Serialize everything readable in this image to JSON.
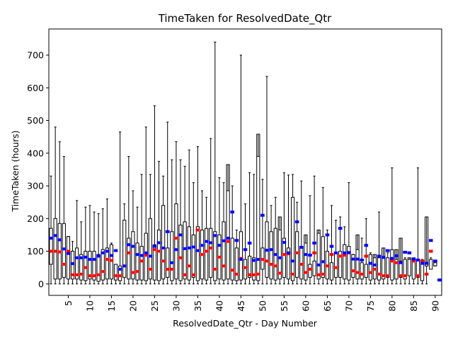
{
  "chart_data": {
    "type": "boxplot",
    "title": "TimeTaken for ResolvedDate_Qtr",
    "xlabel": "ResolvedDate_Qtr - Day Number",
    "ylabel": "TimeTaken (hours)",
    "xlim": [
      0.5,
      91.5
    ],
    "ylim": [
      -35,
      780
    ],
    "x_ticks": [
      5,
      10,
      15,
      20,
      25,
      30,
      35,
      40,
      45,
      50,
      55,
      60,
      65,
      70,
      75,
      80,
      85,
      90
    ],
    "x_tick_labels": [
      "5",
      "10",
      "15",
      "20",
      "25",
      "30",
      "35",
      "40",
      "45",
      "50",
      "55",
      "60",
      "65",
      "70",
      "75",
      "80",
      "85",
      "90"
    ],
    "y_ticks": [
      0,
      100,
      200,
      300,
      400,
      500,
      600,
      700
    ],
    "y_tick_labels": [
      "0",
      "100",
      "200",
      "300",
      "400",
      "500",
      "600",
      "700"
    ],
    "grid": false,
    "median_color": "#ff0000",
    "mean_color": "#0000ff",
    "box_color": "#000000",
    "days": [
      1,
      2,
      3,
      4,
      5,
      6,
      7,
      8,
      9,
      10,
      11,
      12,
      13,
      14,
      15,
      16,
      17,
      18,
      19,
      20,
      21,
      22,
      23,
      24,
      25,
      26,
      27,
      28,
      29,
      30,
      31,
      32,
      33,
      34,
      35,
      36,
      37,
      38,
      39,
      40,
      41,
      42,
      43,
      44,
      45,
      46,
      47,
      48,
      49,
      50,
      51,
      52,
      53,
      54,
      55,
      56,
      57,
      58,
      59,
      60,
      61,
      62,
      63,
      64,
      65,
      66,
      67,
      68,
      69,
      70,
      71,
      72,
      73,
      74,
      75,
      76,
      77,
      78,
      79,
      80,
      81,
      82,
      83,
      84,
      85,
      86,
      87,
      88,
      89,
      90,
      91
    ],
    "whisker_low": [
      0,
      0,
      0,
      0,
      0,
      0,
      0,
      0,
      0,
      0,
      0,
      0,
      0,
      0,
      0,
      0,
      0,
      0,
      0,
      0,
      0,
      0,
      0,
      0,
      0,
      0,
      0,
      0,
      0,
      0,
      0,
      0,
      0,
      0,
      0,
      0,
      0,
      0,
      0,
      0,
      0,
      0,
      0,
      0,
      0,
      0,
      0,
      0,
      0,
      0,
      0,
      0,
      0,
      0,
      0,
      0,
      0,
      0,
      0,
      0,
      0,
      0,
      0,
      0,
      0,
      0,
      0,
      0,
      0,
      0,
      0,
      0,
      0,
      0,
      0,
      0,
      0,
      0,
      0,
      0,
      0,
      0,
      0,
      0,
      0,
      0,
      0,
      0,
      45,
      55,
      12
    ],
    "q1": [
      60,
      15,
      15,
      20,
      15,
      15,
      15,
      12,
      10,
      15,
      12,
      8,
      12,
      15,
      15,
      12,
      10,
      20,
      15,
      15,
      12,
      12,
      10,
      15,
      12,
      10,
      15,
      20,
      10,
      15,
      10,
      15,
      12,
      20,
      10,
      15,
      12,
      20,
      10,
      15,
      12,
      15,
      12,
      10,
      12,
      15,
      20,
      12,
      10,
      45,
      20,
      15,
      12,
      15,
      20,
      15,
      10,
      20,
      15,
      12,
      20,
      25,
      15,
      20,
      15,
      12,
      20,
      20,
      15,
      12,
      20,
      15,
      15,
      20,
      12,
      15,
      12,
      15,
      20,
      12,
      15,
      20,
      15,
      25,
      15,
      20,
      10,
      55,
      45,
      55,
      12
    ],
    "median": [
      100,
      100,
      98,
      60,
      100,
      28,
      28,
      30,
      50,
      25,
      25,
      28,
      38,
      75,
      72,
      25,
      25,
      55,
      95,
      35,
      38,
      70,
      88,
      45,
      105,
      100,
      70,
      45,
      45,
      140,
      80,
      28,
      55,
      28,
      165,
      90,
      100,
      110,
      45,
      82,
      55,
      130,
      42,
      30,
      78,
      50,
      28,
      28,
      30,
      75,
      70,
      60,
      55,
      33,
      90,
      92,
      30,
      95,
      60,
      35,
      45,
      95,
      28,
      30,
      55,
      90,
      50,
      85,
      88,
      95,
      40,
      35,
      30,
      85,
      35,
      45,
      30,
      25,
      25,
      70,
      65,
      25,
      25,
      95,
      70,
      25,
      70,
      30,
      100,
      70,
      12
    ],
    "mean": [
      140,
      148,
      135,
      107,
      93,
      62,
      80,
      80,
      82,
      75,
      75,
      85,
      95,
      100,
      87,
      102,
      45,
      55,
      120,
      115,
      90,
      87,
      95,
      85,
      115,
      126,
      110,
      160,
      65,
      105,
      150,
      108,
      110,
      113,
      102,
      118,
      130,
      126,
      148,
      118,
      132,
      140,
      220,
      133,
      75,
      105,
      125,
      72,
      75,
      210,
      103,
      105,
      90,
      80,
      127,
      95,
      70,
      190,
      112,
      90,
      88,
      125,
      58,
      68,
      150,
      115,
      95,
      170,
      95,
      96,
      76,
      76,
      73,
      118,
      63,
      58,
      85,
      81,
      102,
      78,
      86,
      65,
      97,
      95,
      76,
      73,
      63,
      63,
      133,
      70,
      12
    ],
    "q3": [
      170,
      200,
      185,
      185,
      145,
      100,
      110,
      90,
      100,
      100,
      100,
      90,
      105,
      110,
      120,
      60,
      55,
      195,
      140,
      160,
      125,
      115,
      155,
      200,
      120,
      165,
      240,
      110,
      160,
      245,
      180,
      190,
      175,
      150,
      175,
      165,
      170,
      170,
      160,
      150,
      190,
      365,
      140,
      110,
      160,
      75,
      85,
      80,
      458,
      110,
      190,
      160,
      170,
      205,
      140,
      110,
      265,
      160,
      115,
      150,
      60,
      70,
      165,
      145,
      100,
      65,
      95,
      100,
      120,
      115,
      90,
      150,
      65,
      60,
      90,
      90,
      80,
      110,
      80,
      105,
      105,
      140,
      75,
      80,
      80,
      75,
      70,
      205,
      75,
      65,
      12
    ],
    "whisker_high": [
      330,
      480,
      435,
      390,
      145,
      130,
      255,
      190,
      235,
      240,
      220,
      215,
      230,
      260,
      125,
      60,
      465,
      245,
      390,
      285,
      235,
      335,
      480,
      335,
      545,
      375,
      330,
      495,
      380,
      435,
      380,
      360,
      410,
      310,
      420,
      285,
      265,
      445,
      740,
      325,
      310,
      285,
      300,
      165,
      700,
      245,
      340,
      335,
      390,
      320,
      635,
      240,
      265,
      165,
      340,
      333,
      335,
      250,
      315,
      125,
      270,
      330,
      155,
      295,
      165,
      240,
      195,
      205,
      175,
      310,
      90,
      105,
      140,
      200,
      95,
      80,
      220,
      80,
      95,
      355,
      75,
      70,
      80,
      75,
      70,
      355,
      75,
      65,
      80,
      70,
      12
    ]
  }
}
